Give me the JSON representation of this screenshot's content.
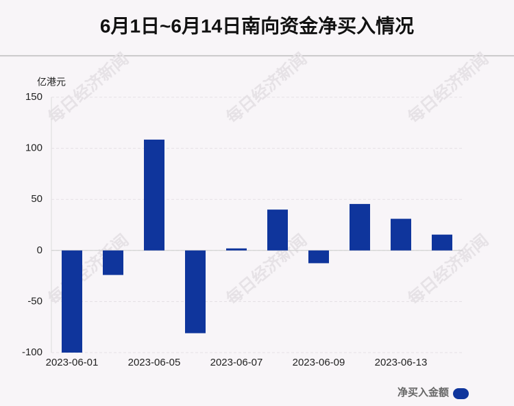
{
  "chart_data": {
    "type": "bar",
    "title": "6月1日~6月14日南向资金净买入情况",
    "y_label": "亿港元",
    "categories": [
      "2023-06-01",
      null,
      "2023-06-05",
      null,
      "2023-06-07",
      null,
      "2023-06-09",
      null,
      "2023-06-13",
      null
    ],
    "series": [
      {
        "name": "净买入金额",
        "color": "#0f359c",
        "values": [
          -100,
          -24,
          108.5,
          -81,
          2,
          40,
          -12.5,
          45.5,
          31,
          15.5
        ]
      }
    ],
    "ylim": [
      -100,
      150
    ],
    "yticks": [
      -100,
      -50,
      0,
      50,
      100,
      150
    ],
    "grid": true,
    "legend": "bottom-right",
    "watermark": "每日经济新闻"
  }
}
